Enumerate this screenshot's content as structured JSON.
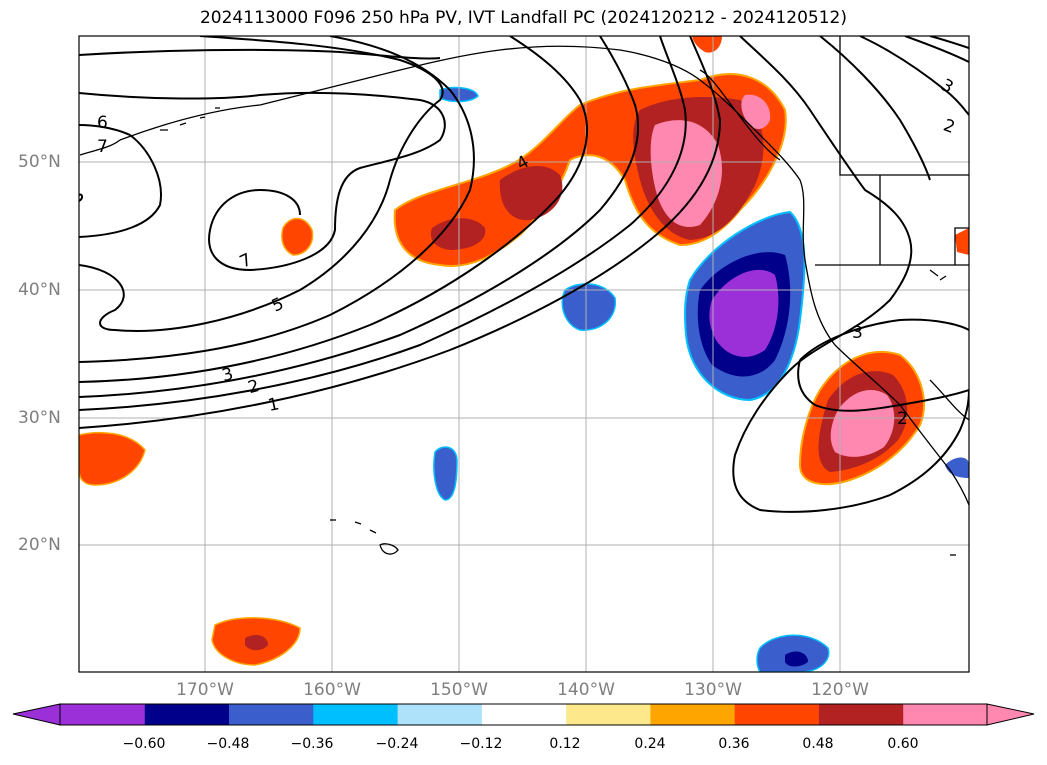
{
  "title": "2024113000 F096 250 hPa PV, IVT Landfall PC (2024120212 - 2024120512)",
  "axes": {
    "lat_labels": [
      "50°N",
      "40°N",
      "30°N",
      "20°N"
    ],
    "lon_labels": [
      "170°W",
      "160°W",
      "150°W",
      "140°W",
      "130°W",
      "120°W"
    ]
  },
  "contour_labels": [
    "6",
    "7",
    "7",
    "5",
    "3",
    "2",
    "1",
    "4",
    "3",
    "2",
    "3",
    "2"
  ],
  "colorbar": {
    "ticks": [
      "−0.60",
      "−0.48",
      "−0.36",
      "−0.24",
      "−0.12",
      "0.12",
      "0.24",
      "0.36",
      "0.48",
      "0.60"
    ],
    "colors": [
      "#9b30d9",
      "#00008b",
      "#3a5fcd",
      "#00bfff",
      "#aee1fa",
      "#ffffff",
      "#fde98b",
      "#ffa500",
      "#ff4500",
      "#b22222",
      "#ff88b0"
    ]
  },
  "icons": [
    "colorbar-min-extend-triangle",
    "colorbar-max-extend-triangle"
  ]
}
